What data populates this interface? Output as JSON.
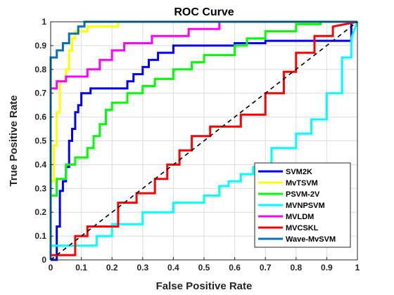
{
  "chart_data": {
    "type": "line",
    "title": "ROC Curve",
    "xlabel": "False Positive Rate",
    "ylabel": "True Positive Rate",
    "xlim": [
      0,
      1
    ],
    "ylim": [
      0,
      1
    ],
    "xticks": [
      "0",
      "0.1",
      "0.2",
      "0.3",
      "0.4",
      "0.5",
      "0.6",
      "0.7",
      "0.8",
      "0.9",
      "1"
    ],
    "yticks": [
      "0",
      "0.1",
      "0.2",
      "0.3",
      "0.4",
      "0.5",
      "0.6",
      "0.7",
      "0.8",
      "0.9",
      "1"
    ],
    "grid": true,
    "legend_position": "bottom-right",
    "diagonal": {
      "x": [
        0,
        1
      ],
      "y": [
        0,
        1
      ],
      "style": "dashed",
      "color": "#000000"
    },
    "series": [
      {
        "name": "SVM2K",
        "color": "#0000FF",
        "x": [
          0,
          0.02,
          0.02,
          0.03,
          0.03,
          0.04,
          0.04,
          0.05,
          0.05,
          0.06,
          0.06,
          0.07,
          0.07,
          0.08,
          0.08,
          0.09,
          0.09,
          0.1,
          0.1,
          0.13,
          0.13,
          0.25,
          0.25,
          0.27,
          0.27,
          0.3,
          0.3,
          0.32,
          0.32,
          0.35,
          0.35,
          0.4,
          0.4,
          0.6,
          0.6,
          0.7,
          0.7,
          0.98,
          0.98,
          1.0
        ],
        "y": [
          0,
          0,
          0.14,
          0.14,
          0.29,
          0.29,
          0.33,
          0.33,
          0.39,
          0.39,
          0.5,
          0.5,
          0.55,
          0.55,
          0.62,
          0.62,
          0.65,
          0.65,
          0.7,
          0.7,
          0.72,
          0.72,
          0.75,
          0.75,
          0.78,
          0.78,
          0.81,
          0.81,
          0.84,
          0.84,
          0.87,
          0.87,
          0.9,
          0.9,
          0.91,
          0.91,
          0.92,
          0.92,
          1.0,
          1.0
        ]
      },
      {
        "name": "MvTSVM",
        "color": "#FFFF00",
        "x": [
          0,
          0.0,
          0.01,
          0.01,
          0.02,
          0.02,
          0.03,
          0.03,
          0.05,
          0.05,
          0.06,
          0.06,
          0.07,
          0.07,
          0.08,
          0.08,
          0.12,
          0.12,
          0.22,
          0.22,
          1.0
        ],
        "y": [
          0,
          0.33,
          0.33,
          0.48,
          0.48,
          0.62,
          0.62,
          0.75,
          0.75,
          0.8,
          0.8,
          0.88,
          0.88,
          0.93,
          0.93,
          0.96,
          0.96,
          0.98,
          0.98,
          1.0,
          1.0
        ]
      },
      {
        "name": "PSVM-2V",
        "color": "#00FF00",
        "x": [
          0,
          0.0,
          0.02,
          0.02,
          0.05,
          0.05,
          0.08,
          0.08,
          0.12,
          0.12,
          0.14,
          0.14,
          0.16,
          0.16,
          0.18,
          0.18,
          0.2,
          0.2,
          0.25,
          0.25,
          0.3,
          0.3,
          0.34,
          0.34,
          0.4,
          0.4,
          0.46,
          0.46,
          0.5,
          0.5,
          0.6,
          0.6,
          0.64,
          0.64,
          0.7,
          0.7,
          0.8,
          0.8,
          0.88,
          0.88,
          1.0
        ],
        "y": [
          0,
          0.27,
          0.27,
          0.34,
          0.34,
          0.4,
          0.4,
          0.43,
          0.43,
          0.47,
          0.47,
          0.52,
          0.52,
          0.57,
          0.57,
          0.63,
          0.63,
          0.66,
          0.66,
          0.7,
          0.7,
          0.73,
          0.73,
          0.76,
          0.76,
          0.8,
          0.8,
          0.83,
          0.83,
          0.86,
          0.86,
          0.9,
          0.9,
          0.93,
          0.93,
          0.96,
          0.96,
          0.99,
          0.99,
          1.0,
          1.0
        ]
      },
      {
        "name": "MVNPSVM",
        "color": "#00FFFF",
        "x": [
          0,
          0.0,
          0.15,
          0.15,
          0.2,
          0.2,
          0.3,
          0.3,
          0.4,
          0.4,
          0.5,
          0.5,
          0.55,
          0.55,
          0.58,
          0.58,
          0.62,
          0.62,
          0.66,
          0.66,
          0.72,
          0.72,
          0.8,
          0.8,
          0.85,
          0.85,
          0.9,
          0.9,
          0.95,
          0.95,
          0.98,
          0.98,
          1.0
        ],
        "y": [
          0,
          0.06,
          0.06,
          0.1,
          0.1,
          0.15,
          0.15,
          0.2,
          0.2,
          0.24,
          0.24,
          0.27,
          0.27,
          0.31,
          0.31,
          0.33,
          0.33,
          0.36,
          0.36,
          0.39,
          0.39,
          0.47,
          0.47,
          0.53,
          0.53,
          0.59,
          0.59,
          0.7,
          0.7,
          0.85,
          0.85,
          0.93,
          1.0
        ]
      },
      {
        "name": "MVLDM",
        "color": "#FF00FF",
        "x": [
          0,
          0.0,
          0.02,
          0.02,
          0.05,
          0.05,
          0.12,
          0.12,
          0.16,
          0.16,
          0.2,
          0.2,
          0.24,
          0.24,
          0.33,
          0.33,
          0.45,
          0.45,
          0.55,
          0.55,
          1.0
        ],
        "y": [
          0,
          0.72,
          0.72,
          0.75,
          0.75,
          0.77,
          0.77,
          0.8,
          0.8,
          0.84,
          0.84,
          0.88,
          0.88,
          0.91,
          0.91,
          0.94,
          0.94,
          0.97,
          0.97,
          1.0,
          1.0
        ]
      },
      {
        "name": "MVCSKL",
        "color": "#FF0000",
        "x": [
          0,
          0.0,
          0.08,
          0.08,
          0.12,
          0.12,
          0.22,
          0.22,
          0.28,
          0.28,
          0.34,
          0.34,
          0.38,
          0.38,
          0.42,
          0.42,
          0.46,
          0.46,
          0.52,
          0.52,
          0.62,
          0.62,
          0.7,
          0.7,
          0.76,
          0.76,
          0.8,
          0.8,
          0.86,
          0.86,
          0.92,
          0.92,
          1.0
        ],
        "y": [
          0,
          0.02,
          0.02,
          0.1,
          0.1,
          0.14,
          0.14,
          0.24,
          0.24,
          0.28,
          0.28,
          0.34,
          0.34,
          0.4,
          0.4,
          0.46,
          0.46,
          0.52,
          0.52,
          0.56,
          0.56,
          0.61,
          0.61,
          0.7,
          0.7,
          0.79,
          0.79,
          0.87,
          0.87,
          0.94,
          0.94,
          0.98,
          1.0
        ]
      },
      {
        "name": "Wave-MvSVM",
        "color": "#0072BD",
        "x": [
          0,
          0.0,
          0.02,
          0.02,
          0.04,
          0.04,
          0.06,
          0.06,
          0.09,
          0.09,
          0.11,
          0.11,
          1.0
        ],
        "y": [
          0,
          0.85,
          0.85,
          0.88,
          0.88,
          0.91,
          0.91,
          0.95,
          0.95,
          0.98,
          0.98,
          1.0,
          1.0
        ]
      }
    ]
  }
}
